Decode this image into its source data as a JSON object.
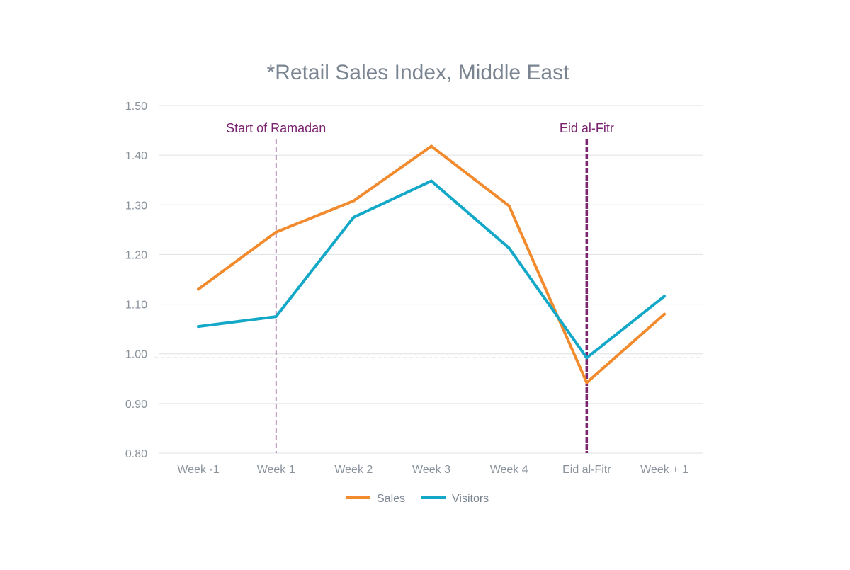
{
  "chart_data": {
    "type": "line",
    "title": "*Retail Sales Index, Middle East",
    "categories": [
      "Week -1",
      "Week 1",
      "Week 2",
      "Week 3",
      "Week 4",
      "Eid al-Fitr",
      "Week + 1"
    ],
    "ylim": [
      0.8,
      1.5
    ],
    "yticks": [
      1.5,
      1.4,
      1.3,
      1.2,
      1.1,
      1.0,
      0.9,
      0.8
    ],
    "ytick_labels": [
      "1.50",
      "1.40",
      "1.30",
      "1.20",
      "1.10",
      "1.00",
      "0.90",
      "0.80"
    ],
    "series": [
      {
        "name": "Sales",
        "color": "#f18b2e",
        "values": [
          1.13,
          1.245,
          1.308,
          1.418,
          1.298,
          0.942,
          1.08
        ]
      },
      {
        "name": "Visitors",
        "color": "#14a8c8",
        "values": [
          1.055,
          1.075,
          1.275,
          1.348,
          1.213,
          0.992,
          1.116
        ]
      }
    ],
    "reference_line": {
      "y": 0.992,
      "style": "dashed",
      "color": "#b9b9b9"
    },
    "annotations": [
      {
        "label": "Start of Ramadan",
        "x_category": "Week 1",
        "color": "#7a2470",
        "style": "dashed"
      },
      {
        "label": "Eid al-Fitr",
        "x_category": "Eid al-Fitr",
        "color": "#7a2470",
        "style": "dashed-bold"
      }
    ],
    "grid": true,
    "legend_position": "bottom-center",
    "xlabel": "",
    "ylabel": ""
  }
}
